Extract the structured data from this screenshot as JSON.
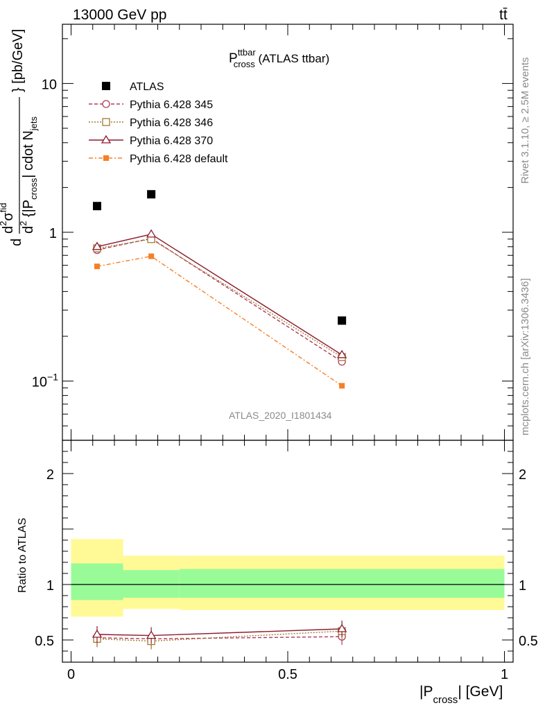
{
  "header": {
    "energy_label": "13000 GeV pp",
    "process_label": "tt̄",
    "rivet_label": "Rivet 3.1.10, ≥ 2.5M events",
    "mcplots_label": "mcplots.cern.ch [arXiv:1306.3436]",
    "analysis_label": "ATLAS_2020_I1801434"
  },
  "plot_title": {
    "main": "P",
    "sup": "ttbar",
    "sub": "cross",
    "suffix": " (ATLAS ttbar)"
  },
  "y_label_top": {
    "prefix": "d",
    "frac_num": "d",
    "num_sup": "2",
    "num_sigma": "σ",
    "num_sigma_sup": "fid",
    "den_d": "d",
    "den_sup": "2",
    "den_body": " {|P",
    "den_sub": "cross",
    "den_mid": "| cdot N",
    "den_sub2": "jets",
    "close": "} [pb/GeV]"
  },
  "y_label_bottom": "Ratio to ATLAS",
  "x_label": {
    "pre": "|P",
    "sub": "cross",
    "post": "| [GeV]"
  },
  "legend": [
    {
      "label": "ATLAS",
      "color": "#000000",
      "marker": "square-filled",
      "dash": "none"
    },
    {
      "label": "Pythia 6.428 345",
      "color": "#b03a5a",
      "marker": "circle-open",
      "dash": "5,3"
    },
    {
      "label": "Pythia 6.428 346",
      "color": "#a07a30",
      "marker": "square-open",
      "dash": "2,2"
    },
    {
      "label": "Pythia 6.428 370",
      "color": "#8b1a2e",
      "marker": "triangle-open",
      "dash": "none"
    },
    {
      "label": "Pythia 6.428 default",
      "color": "#f57f26",
      "marker": "square-filled",
      "dash": "6,3,2,3"
    }
  ],
  "chart_data": [
    {
      "type": "scatter",
      "panel": "main",
      "title": "P^ttbar_cross (ATLAS ttbar)",
      "xlabel": "|P_cross| [GeV]",
      "ylabel": "d^2σ^fid / d^2 {|P_cross| cdot N_jets} [pb/GeV]",
      "yscale": "log",
      "xlim": [
        -0.02,
        1.02
      ],
      "ylim": [
        0.04,
        25
      ],
      "y_ticks": [
        {
          "v": 0.1,
          "label": "10",
          "sup": "−1"
        },
        {
          "v": 1,
          "label": "1",
          "sup": ""
        },
        {
          "v": 10,
          "label": "10",
          "sup": ""
        }
      ],
      "x": [
        0.06,
        0.185,
        0.625
      ],
      "series": [
        {
          "name": "ATLAS",
          "values": [
            1.5,
            1.8,
            0.255
          ]
        },
        {
          "name": "Pythia 6.428 345",
          "values": [
            0.76,
            0.91,
            0.135
          ]
        },
        {
          "name": "Pythia 6.428 346",
          "values": [
            0.78,
            0.9,
            0.145
          ]
        },
        {
          "name": "Pythia 6.428 370",
          "values": [
            0.8,
            0.97,
            0.15
          ]
        },
        {
          "name": "Pythia 6.428 default",
          "values": [
            0.59,
            0.69,
            0.093
          ]
        }
      ]
    },
    {
      "type": "line",
      "panel": "ratio",
      "ylabel": "Ratio to ATLAS",
      "xlabel": "|P_cross| [GeV]",
      "xlim": [
        -0.02,
        1.02
      ],
      "ylim": [
        0.3,
        2.3
      ],
      "x_ticks": [
        {
          "v": 0,
          "label": "0"
        },
        {
          "v": 0.5,
          "label": "0.5"
        },
        {
          "v": 1,
          "label": "1"
        }
      ],
      "y_ticks": [
        {
          "v": 0.5,
          "label": "0.5"
        },
        {
          "v": 1,
          "label": "1"
        },
        {
          "v": 2,
          "label": "2"
        }
      ],
      "bands": [
        {
          "x0": 0.0,
          "x1": 0.12,
          "inner": [
            0.86,
            1.19
          ],
          "outer": [
            0.71,
            1.41
          ]
        },
        {
          "x0": 0.12,
          "x1": 0.25,
          "inner": [
            0.88,
            1.13
          ],
          "outer": [
            0.78,
            1.26
          ]
        },
        {
          "x0": 0.25,
          "x1": 1.0,
          "inner": [
            0.88,
            1.14
          ],
          "outer": [
            0.77,
            1.26
          ]
        }
      ],
      "x": [
        0.06,
        0.185,
        0.625
      ],
      "series": [
        {
          "name": "Pythia 6.428 345",
          "values": [
            0.52,
            0.51,
            0.53
          ]
        },
        {
          "name": "Pythia 6.428 346",
          "values": [
            0.51,
            0.49,
            0.58
          ]
        },
        {
          "name": "Pythia 6.428 370",
          "values": [
            0.55,
            0.54,
            0.6
          ]
        }
      ]
    }
  ],
  "colors": {
    "band_inner": "#98fb98",
    "band_outer": "#fffa96"
  }
}
